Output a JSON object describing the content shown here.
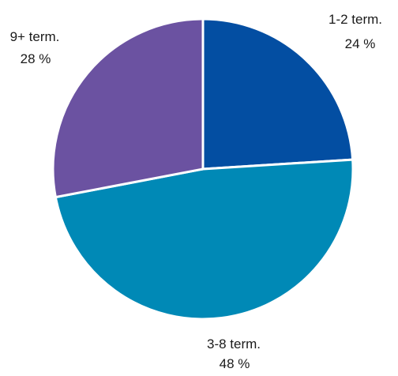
{
  "chart_data": {
    "type": "pie",
    "title": "",
    "slices": [
      {
        "label": "1-2 term.",
        "value": 24,
        "value_label": "24 %",
        "color": "#034EA2"
      },
      {
        "label": "3-8 term.",
        "value": 48,
        "value_label": "48 %",
        "color": "#0089B6"
      },
      {
        "label": "9+ term.",
        "value": 28,
        "value_label": "28 %",
        "color": "#6B52A1"
      }
    ],
    "start_angle_deg": 0,
    "direction": "clockwise",
    "legend": "none"
  }
}
